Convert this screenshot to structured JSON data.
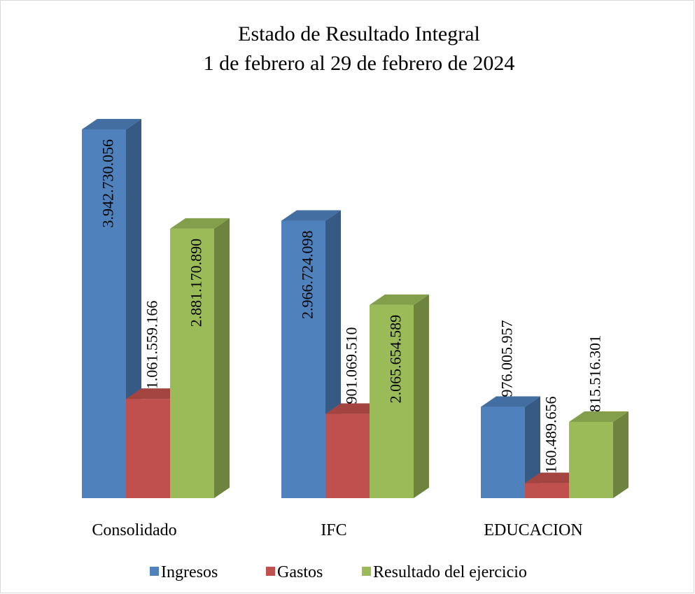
{
  "chart_data": {
    "type": "bar",
    "title": "Estado de Resultado Integral",
    "subtitle": "1 de febrero al 29 de febrero de 2024",
    "categories": [
      "Consolidado",
      "IFC",
      "EDUCACION"
    ],
    "series": [
      {
        "name": "Ingresos",
        "color": "#4f81bd",
        "values": [
          3942730056,
          2966724098,
          976005957
        ],
        "value_labels": [
          "3.942.730.056",
          "2.966.724.098",
          "976.005.957"
        ]
      },
      {
        "name": "Gastos",
        "color": "#c0504d",
        "values": [
          1061559166,
          901069510,
          160489656
        ],
        "value_labels": [
          "1.061.559.166",
          "901.069.510",
          "160.489.656"
        ]
      },
      {
        "name": "Resultado del ejercicio",
        "color": "#9bbb59",
        "values": [
          2881170890,
          2065654589,
          815516301
        ],
        "value_labels": [
          "2.881.170.890",
          "2.065.654.589",
          "815.516.301"
        ]
      }
    ],
    "legend": "bottom"
  }
}
